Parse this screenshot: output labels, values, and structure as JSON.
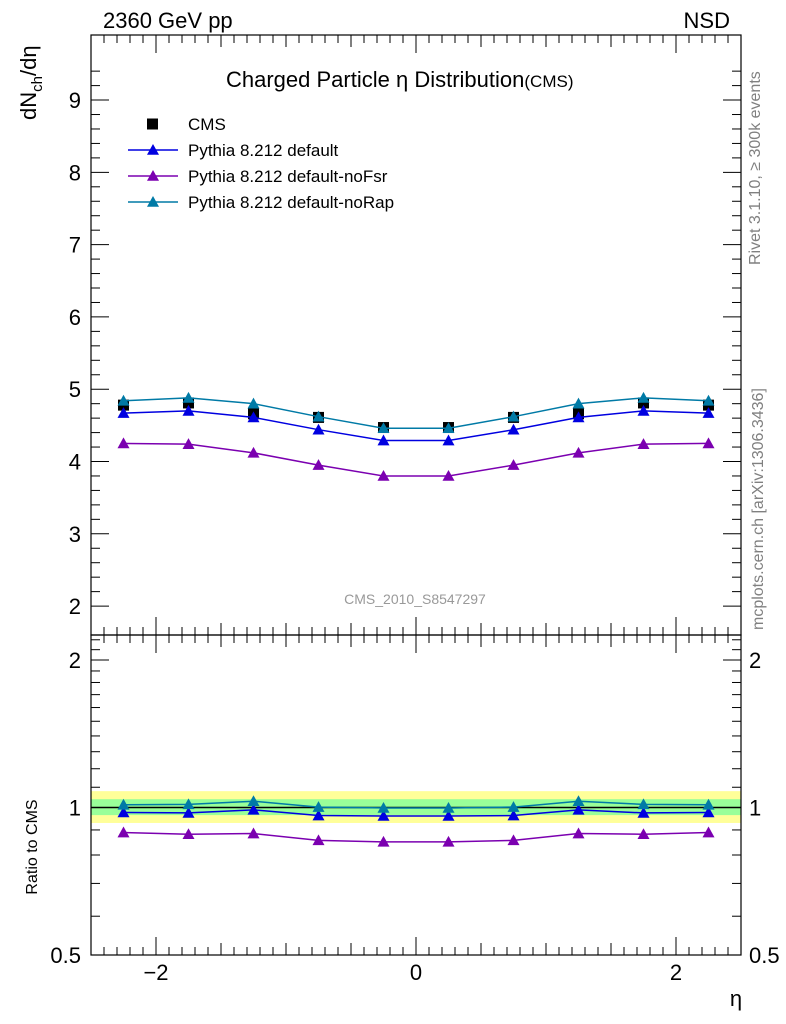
{
  "header": {
    "left": "2360 GeV pp",
    "right": "NSD"
  },
  "side_labels": {
    "rivet": "Rivet 3.1.10, ≥ 300k events",
    "mcplots": "mcplots.cern.ch [arXiv:1306.3436]"
  },
  "watermark": "CMS_2010_S8547297",
  "chart_data": [
    {
      "type": "line",
      "title": "Charged Particle η Distribution",
      "title_suffix": "(CMS)",
      "xlabel": "η",
      "ylabel": "dN",
      "ylabel_sub": "ch",
      "ylabel_tail": "/dη",
      "xlim": [
        -2.5,
        2.5
      ],
      "ylim": [
        1.6,
        9.9
      ],
      "y_ticks": [
        2,
        3,
        4,
        5,
        6,
        7,
        8,
        9
      ],
      "legend_position": "top-left",
      "x": [
        -2.25,
        -1.75,
        -1.25,
        -0.75,
        -0.25,
        0.25,
        0.75,
        1.25,
        1.75,
        2.25
      ],
      "series": [
        {
          "name": "CMS",
          "marker": "square",
          "color": "#000000",
          "line": false,
          "values": [
            4.78,
            4.81,
            4.66,
            4.61,
            4.47,
            4.47,
            4.61,
            4.66,
            4.81,
            4.78
          ]
        },
        {
          "name": "Pythia 8.212 default",
          "marker": "triangle",
          "color": "#0000e0",
          "line": true,
          "values": [
            4.67,
            4.7,
            4.61,
            4.44,
            4.29,
            4.29,
            4.44,
            4.61,
            4.7,
            4.67
          ]
        },
        {
          "name": "Pythia 8.212 default-noFsr",
          "marker": "triangle",
          "color": "#7b00b0",
          "line": true,
          "values": [
            4.25,
            4.24,
            4.12,
            3.95,
            3.8,
            3.8,
            3.95,
            4.12,
            4.24,
            4.25
          ]
        },
        {
          "name": "Pythia 8.212 default-noRap",
          "marker": "triangle",
          "color": "#007aa6",
          "line": true,
          "values": [
            4.84,
            4.88,
            4.8,
            4.62,
            4.46,
            4.46,
            4.62,
            4.8,
            4.88,
            4.84
          ]
        }
      ]
    },
    {
      "type": "line",
      "title": "",
      "xlabel": "η",
      "ylabel": "Ratio to CMS",
      "xlim": [
        -2.5,
        2.5
      ],
      "ylim": [
        0.5,
        2.25
      ],
      "y_ticks": [
        0.5,
        1,
        2
      ],
      "y_ticks_labels": [
        "0.5",
        "1",
        "2"
      ],
      "x_ticks": [
        -2,
        0,
        2
      ],
      "x_ticks_labels": [
        "−2",
        "0",
        "2"
      ],
      "band_colors": {
        "outer": "#ffff99",
        "inner": "#99ff99"
      },
      "band_outer": [
        0.93,
        1.08
      ],
      "band_inner": [
        0.965,
        1.04
      ],
      "x": [
        -2.25,
        -1.75,
        -1.25,
        -0.75,
        -0.25,
        0.25,
        0.75,
        1.25,
        1.75,
        2.25
      ],
      "series": [
        {
          "name": "Pythia 8.212 default",
          "color": "#0000e0",
          "values": [
            0.977,
            0.975,
            0.989,
            0.963,
            0.961,
            0.961,
            0.963,
            0.989,
            0.975,
            0.977
          ]
        },
        {
          "name": "Pythia 8.212 default-noFsr",
          "color": "#7b00b0",
          "values": [
            0.889,
            0.882,
            0.885,
            0.857,
            0.851,
            0.851,
            0.857,
            0.885,
            0.882,
            0.889
          ]
        },
        {
          "name": "Pythia 8.212 default-noRap",
          "color": "#007aa6",
          "values": [
            1.013,
            1.015,
            1.03,
            1.002,
            0.998,
            0.998,
            1.002,
            1.03,
            1.015,
            1.013
          ]
        }
      ]
    }
  ]
}
